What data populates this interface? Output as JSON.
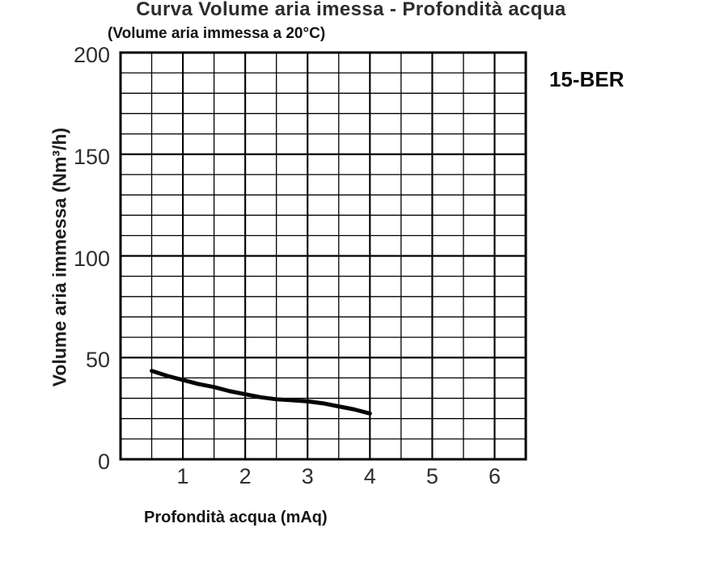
{
  "page": {
    "title": "Curva Volume aria imessa - Profondità acqua",
    "subtitle": "(Volume aria immessa a 20°C)",
    "model_label": "15-BER"
  },
  "chart_data": {
    "type": "line",
    "title": "Curva Volume aria imessa - Profondità acqua",
    "subtitle": "(Volume aria immessa a 20°C)",
    "xlabel": "Profondità acqua (mAq)",
    "ylabel": "Volume aria immessa (Nm³/h)",
    "xlim": [
      0,
      6.5
    ],
    "ylim": [
      0,
      200
    ],
    "xticks": [
      1,
      2,
      3,
      4,
      5,
      6
    ],
    "yticks": [
      0,
      50,
      100,
      150,
      200
    ],
    "x_minor_step": 0.5,
    "x_major_step": 1,
    "y_minor_step": 10,
    "y_major_step": 50,
    "grid": "both",
    "legend_position": "top-right-outside",
    "line_color": "#050505",
    "grid_color": "#000000",
    "series": [
      {
        "name": "15-BER",
        "x": [
          0.5,
          0.75,
          1,
          1.25,
          1.5,
          1.75,
          2,
          2.25,
          2.5,
          2.75,
          3,
          3.25,
          3.5,
          3.75,
          4
        ],
        "y": [
          43.5,
          41,
          39,
          37,
          35.5,
          33.5,
          32,
          30.5,
          29.5,
          29,
          28.5,
          27.5,
          26,
          24.5,
          22.5
        ]
      }
    ]
  }
}
